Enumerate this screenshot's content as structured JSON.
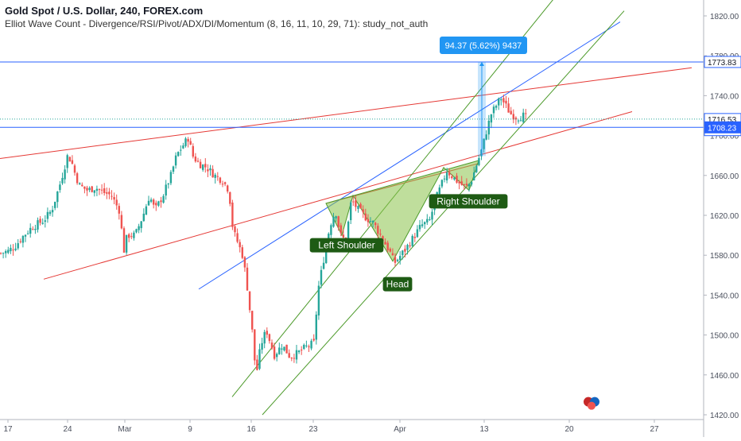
{
  "header": {
    "title": "Gold Spot / U.S. Dollar, 240, FOREX.com",
    "study": "Elliot Wave Count - Divergence/RSI/Pivot/ADX/DI/Momentum (8, 16, 11, 10, 29, 71): study_not_auth"
  },
  "colors": {
    "up": "#26a69a",
    "down": "#ef5350",
    "trend_red": "#e53935",
    "trend_green": "#4c9a2a",
    "trend_blue": "#2962ff",
    "pattern_fill": "#8bc34a",
    "label_bg": "#1e5b14",
    "measure": "#2196f3"
  },
  "chart_data": {
    "type": "candlestick",
    "ylim": [
      1420,
      1840
    ],
    "y_ticks": [
      1420,
      1460,
      1500,
      1540,
      1580,
      1620,
      1660,
      1700,
      1740,
      1780,
      1820
    ],
    "y_tick_labels": [
      "1420.00",
      "1460.00",
      "1500.00",
      "1540.00",
      "1580.00",
      "1620.00",
      "1660.00",
      "1700.00",
      "1740.00",
      "1780.00",
      "1820.00"
    ],
    "x_labels": [
      "17",
      "24",
      "Mar",
      "9",
      "16",
      "23",
      "Apr",
      "13",
      "20",
      "27"
    ],
    "price_tags": [
      {
        "label": "1773.83",
        "value": 1773.83,
        "style": "outline"
      },
      {
        "label": "1716.53",
        "value": 1716.53,
        "style": "outline"
      },
      {
        "label": "03:34:35",
        "value": 1705.5,
        "style": "outline"
      },
      {
        "label": "1708.23",
        "value": 1708.23,
        "style": "solid"
      }
    ],
    "horizontal_lines": [
      {
        "value": 1773.83,
        "color": "#2962ff",
        "style": "solid"
      },
      {
        "value": 1716.53,
        "color": "#26a69a",
        "style": "dotted"
      },
      {
        "value": 1708.23,
        "color": "#2962ff",
        "style": "solid"
      }
    ],
    "close_path": [
      [
        0,
        1582
      ],
      [
        10,
        1584
      ],
      [
        20,
        1590
      ],
      [
        30,
        1600
      ],
      [
        40,
        1608
      ],
      [
        55,
        1615
      ],
      [
        65,
        1625
      ],
      [
        75,
        1650
      ],
      [
        85,
        1680
      ],
      [
        90,
        1674
      ],
      [
        95,
        1660
      ],
      [
        100,
        1650
      ],
      [
        110,
        1645
      ],
      [
        120,
        1648
      ],
      [
        130,
        1643
      ],
      [
        140,
        1640
      ],
      [
        150,
        1625
      ],
      [
        156,
        1585
      ],
      [
        160,
        1600
      ],
      [
        170,
        1600
      ],
      [
        180,
        1620
      ],
      [
        188,
        1640
      ],
      [
        195,
        1625
      ],
      [
        205,
        1640
      ],
      [
        215,
        1660
      ],
      [
        222,
        1680
      ],
      [
        230,
        1690
      ],
      [
        237,
        1698
      ],
      [
        242,
        1680
      ],
      [
        250,
        1672
      ],
      [
        260,
        1668
      ],
      [
        270,
        1660
      ],
      [
        280,
        1655
      ],
      [
        288,
        1645
      ],
      [
        293,
        1605
      ],
      [
        298,
        1595
      ],
      [
        305,
        1580
      ],
      [
        310,
        1555
      ],
      [
        318,
        1498
      ],
      [
        322,
        1458
      ],
      [
        328,
        1490
      ],
      [
        335,
        1505
      ],
      [
        345,
        1480
      ],
      [
        355,
        1490
      ],
      [
        365,
        1478
      ],
      [
        375,
        1482
      ],
      [
        385,
        1488
      ],
      [
        395,
        1492
      ],
      [
        400,
        1545
      ],
      [
        408,
        1580
      ],
      [
        415,
        1610
      ],
      [
        422,
        1625
      ],
      [
        428,
        1600
      ],
      [
        435,
        1594
      ],
      [
        442,
        1636
      ],
      [
        450,
        1626
      ],
      [
        460,
        1618
      ],
      [
        470,
        1612
      ],
      [
        480,
        1598
      ],
      [
        490,
        1584
      ],
      [
        496,
        1572
      ],
      [
        502,
        1578
      ],
      [
        510,
        1586
      ],
      [
        520,
        1598
      ],
      [
        530,
        1610
      ],
      [
        540,
        1614
      ],
      [
        548,
        1636
      ],
      [
        555,
        1650
      ],
      [
        562,
        1665
      ],
      [
        570,
        1658
      ],
      [
        578,
        1652
      ],
      [
        586,
        1648
      ],
      [
        592,
        1653
      ],
      [
        600,
        1672
      ],
      [
        606,
        1686
      ],
      [
        612,
        1705
      ],
      [
        618,
        1722
      ],
      [
        624,
        1730
      ],
      [
        630,
        1738
      ],
      [
        636,
        1730
      ],
      [
        642,
        1722
      ],
      [
        650,
        1718
      ],
      [
        658,
        1720
      ],
      [
        664,
        1716
      ]
    ],
    "trendlines": [
      {
        "kind": "red",
        "x1": 0,
        "y1": 1677,
        "x2": 870,
        "y2": 1768
      },
      {
        "kind": "red",
        "x1": 55,
        "y1": 1556,
        "x2": 795,
        "y2": 1724
      },
      {
        "kind": "red",
        "x1": 410,
        "y1": 1632,
        "x2": 602,
        "y2": 1672
      },
      {
        "kind": "blue",
        "x1": 250,
        "y1": 1546,
        "x2": 780,
        "y2": 1814
      },
      {
        "kind": "green",
        "x1": 292,
        "y1": 1438,
        "x2": 750,
        "y2": 1890
      },
      {
        "kind": "green",
        "x1": 330,
        "y1": 1420,
        "x2": 785,
        "y2": 1825
      }
    ],
    "pattern": [
      [
        410,
        1632
      ],
      [
        430,
        1600
      ],
      [
        444,
        1640
      ],
      [
        494,
        1574
      ],
      [
        558,
        1668
      ],
      [
        590,
        1645
      ],
      [
        602,
        1675
      ]
    ],
    "pattern_labels": [
      {
        "key": "left_shoulder",
        "text": "Left Shoulder",
        "x": 436,
        "value": 1590
      },
      {
        "key": "head",
        "text": "Head",
        "x": 500,
        "value": 1551
      },
      {
        "key": "right_shoulder",
        "text": "Right Shoulder",
        "x": 589,
        "value": 1634
      }
    ],
    "measure": {
      "x": 606,
      "from": 1679.46,
      "to": 1773.83,
      "label": "94.37 (5.62%) 9437"
    },
    "events": [
      {
        "x": 744,
        "value": 1433
      }
    ]
  }
}
